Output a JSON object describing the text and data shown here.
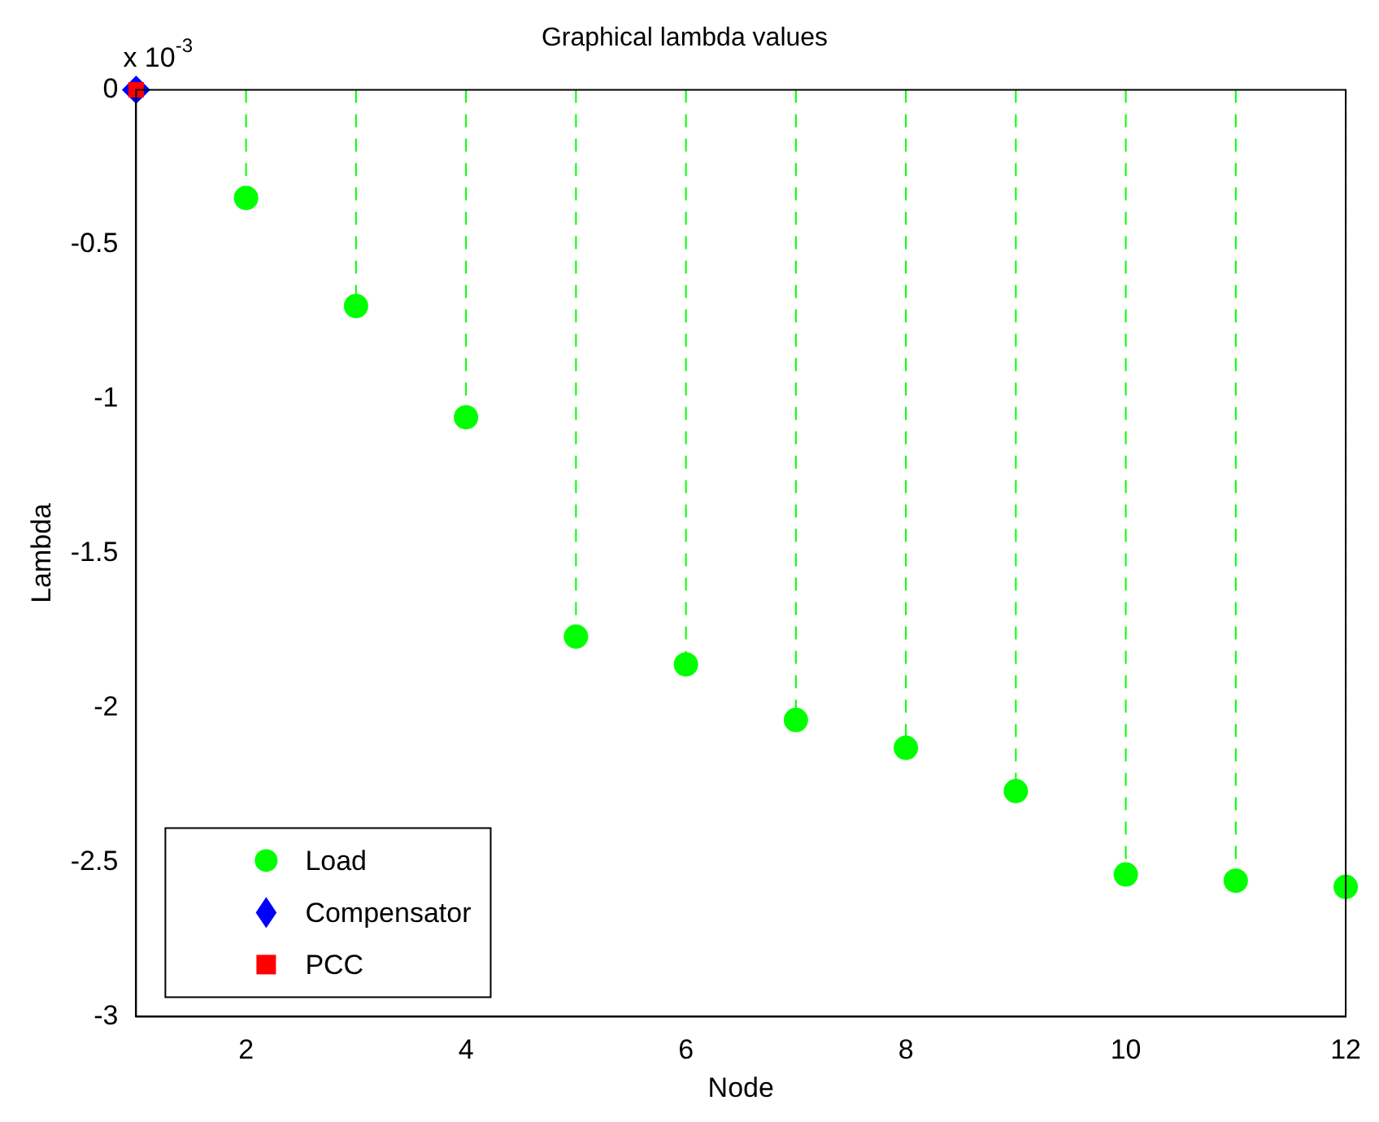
{
  "chart_data": {
    "type": "lollipop",
    "title": "Graphical lambda values",
    "xlabel": "Node",
    "ylabel": "Lambda",
    "annotations": [
      "x 10$^{-3}$"
    ],
    "xlim": [
      1,
      12
    ],
    "xticks": [
      2,
      4,
      6,
      8,
      10,
      12
    ],
    "ylim": [
      -3,
      0
    ],
    "yticks": [
      -3,
      -2.5,
      -2,
      -1.5,
      -1,
      -0.5,
      0
    ],
    "legend": "bottom left",
    "line_style": "dashed",
    "series": [
      {
        "name": "Load",
        "color": "#00ff00",
        "marker": "circle",
        "x": [
          2,
          3,
          4,
          5,
          6,
          7,
          8,
          9,
          10,
          11,
          12
        ],
        "values": [
          -0.35,
          -0.7,
          -1.06,
          -1.77,
          -1.86,
          -2.04,
          -2.13,
          -2.27,
          -2.54,
          -2.56,
          -2.58
        ]
      },
      {
        "name": "Compensator",
        "color": "#0000ff",
        "marker": "diamond",
        "x": [
          1
        ],
        "values": [
          0
        ]
      },
      {
        "name": "PCC",
        "color": "#ff0000",
        "marker": "square",
        "x": [
          1
        ],
        "values": [
          0
        ]
      }
    ]
  }
}
